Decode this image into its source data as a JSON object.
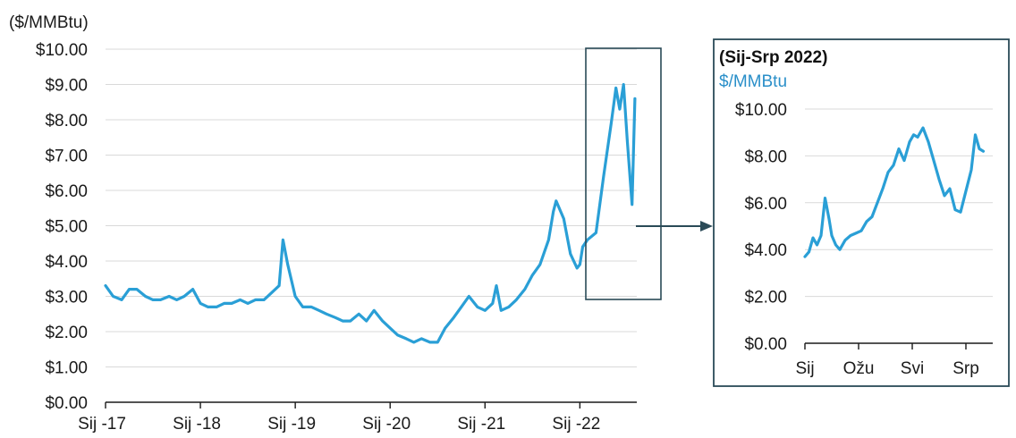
{
  "colors": {
    "series": "#2a9fd6",
    "frame": "#2a4a57",
    "grid": "#d9d9d9",
    "axis": "#1a1a1a",
    "inset_unit": "#2a8fc9"
  },
  "chart_data": [
    {
      "type": "line",
      "ylabel": "($/MMBtu)",
      "ylim": [
        0,
        10
      ],
      "grid": true,
      "ytick_labels": [
        "$0.00",
        "$1.00",
        "$2.00",
        "$3.00",
        "$4.00",
        "$5.00",
        "$6.00",
        "$7.00",
        "$8.00",
        "$9.00",
        "$10.00"
      ],
      "xtick_labels": [
        "Sij -17",
        "Sij -18",
        "Sij -19",
        "Sij -20",
        "Sij -21",
        "Sij -22"
      ],
      "xlim": [
        2017.0,
        2022.6
      ],
      "x": [
        2017.0,
        2017.08,
        2017.17,
        2017.25,
        2017.33,
        2017.42,
        2017.5,
        2017.58,
        2017.67,
        2017.75,
        2017.83,
        2017.92,
        2018.0,
        2018.08,
        2018.17,
        2018.25,
        2018.33,
        2018.42,
        2018.5,
        2018.58,
        2018.67,
        2018.75,
        2018.83,
        2018.87,
        2018.92,
        2019.0,
        2019.08,
        2019.17,
        2019.25,
        2019.33,
        2019.42,
        2019.5,
        2019.58,
        2019.67,
        2019.75,
        2019.83,
        2019.92,
        2020.0,
        2020.08,
        2020.17,
        2020.25,
        2020.33,
        2020.42,
        2020.5,
        2020.58,
        2020.67,
        2020.75,
        2020.83,
        2020.92,
        2021.0,
        2021.08,
        2021.12,
        2021.17,
        2021.25,
        2021.33,
        2021.42,
        2021.5,
        2021.58,
        2021.67,
        2021.72,
        2021.75,
        2021.83,
        2021.9,
        2021.97,
        2022.0,
        2022.03,
        2022.08,
        2022.17,
        2022.25,
        2022.33,
        2022.38,
        2022.42,
        2022.46,
        2022.5,
        2022.55,
        2022.58
      ],
      "series": [
        {
          "values": [
            3.3,
            3.0,
            2.9,
            3.2,
            3.2,
            3.0,
            2.9,
            2.9,
            3.0,
            2.9,
            3.0,
            3.2,
            2.8,
            2.7,
            2.7,
            2.8,
            2.8,
            2.9,
            2.8,
            2.9,
            2.9,
            3.1,
            3.3,
            4.6,
            3.9,
            3.0,
            2.7,
            2.7,
            2.6,
            2.5,
            2.4,
            2.3,
            2.3,
            2.5,
            2.3,
            2.6,
            2.3,
            2.1,
            1.9,
            1.8,
            1.7,
            1.8,
            1.7,
            1.7,
            2.1,
            2.4,
            2.7,
            3.0,
            2.7,
            2.6,
            2.8,
            3.3,
            2.6,
            2.7,
            2.9,
            3.2,
            3.6,
            3.9,
            4.6,
            5.4,
            5.7,
            5.2,
            4.2,
            3.8,
            3.9,
            4.4,
            4.6,
            4.8,
            6.4,
            7.9,
            8.9,
            8.3,
            9.0,
            7.4,
            5.6,
            8.6
          ]
        }
      ]
    },
    {
      "type": "line",
      "title": "(Sij-Srp 2022)",
      "ylabel": "$/MMBtu",
      "ylim": [
        0,
        10
      ],
      "grid": true,
      "ytick_labels": [
        "$0.00",
        "$2.00",
        "$4.00",
        "$6.00",
        "$8.00",
        "$10.00"
      ],
      "xtick_labels": [
        "Sij",
        "Ožu",
        "Svi",
        "Srp"
      ],
      "xlim": [
        0,
        7
      ],
      "x": [
        0,
        0.15,
        0.3,
        0.45,
        0.6,
        0.75,
        0.9,
        1.0,
        1.15,
        1.3,
        1.5,
        1.7,
        1.9,
        2.1,
        2.3,
        2.5,
        2.7,
        2.9,
        3.1,
        3.3,
        3.5,
        3.7,
        3.9,
        4.05,
        4.2,
        4.4,
        4.6,
        4.8,
        5.0,
        5.2,
        5.4,
        5.6,
        5.8,
        6.0,
        6.2,
        6.35,
        6.5,
        6.65
      ],
      "series": [
        {
          "values": [
            3.7,
            3.9,
            4.5,
            4.2,
            4.6,
            6.2,
            5.3,
            4.6,
            4.2,
            4.0,
            4.4,
            4.6,
            4.7,
            4.8,
            5.2,
            5.4,
            6.0,
            6.6,
            7.3,
            7.6,
            8.3,
            7.8,
            8.6,
            8.9,
            8.8,
            9.2,
            8.6,
            7.8,
            7.0,
            6.3,
            6.6,
            5.7,
            5.6,
            6.5,
            7.4,
            8.9,
            8.3,
            8.2
          ]
        }
      ]
    }
  ]
}
